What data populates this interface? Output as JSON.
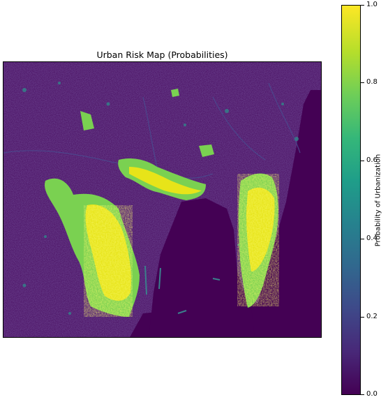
{
  "figure": {
    "title": "Urban Risk Map (Probabilities)",
    "colormap": "viridis",
    "colors": {
      "background_low": "#46085c",
      "sea": "#440154",
      "land_texture": "#3b3f84",
      "mid": "#2f8c8c",
      "green": "#7ad151",
      "high": "#e7e419"
    },
    "map_layers": [
      "open-sea",
      "inland-terrain",
      "bay-water",
      "urban-cluster-west",
      "urban-cluster-north",
      "urban-cluster-east",
      "port-breakwaters"
    ]
  },
  "colorbar": {
    "label": "Probability of Urbanization",
    "range": [
      0.0,
      1.0
    ],
    "ticks": [
      "0.0",
      "0.2",
      "0.4",
      "0.6",
      "0.8",
      "1.0"
    ]
  }
}
